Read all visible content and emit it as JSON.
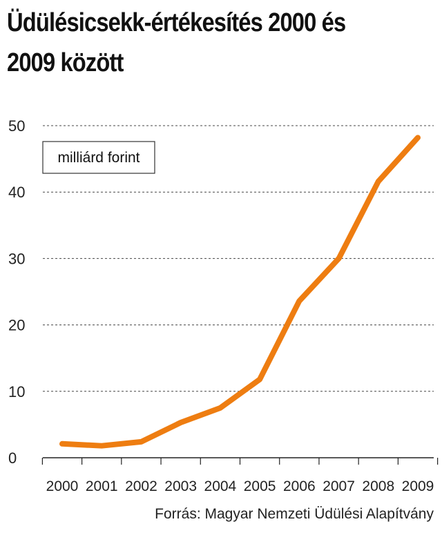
{
  "chart_data": {
    "type": "line",
    "title": "Üdülésicsekk-értékesítés 2000 és 2009 között",
    "unit_label": "milliárd forint",
    "source": "Forrás: Magyar Nemzeti Üdülési Alapítvány",
    "categories": [
      "2000",
      "2001",
      "2002",
      "2003",
      "2004",
      "2005",
      "2006",
      "2007",
      "2008",
      "2009"
    ],
    "series": [
      {
        "values": [
          2.1,
          1.8,
          2.4,
          5.3,
          7.5,
          11.8,
          23.6,
          30.0,
          41.6,
          48.2
        ]
      }
    ],
    "ylim": [
      0,
      50
    ],
    "yticks": [
      0,
      10,
      20,
      30,
      40,
      50
    ],
    "grid": "horizontal dashed",
    "line_color": "#ee7d11"
  }
}
